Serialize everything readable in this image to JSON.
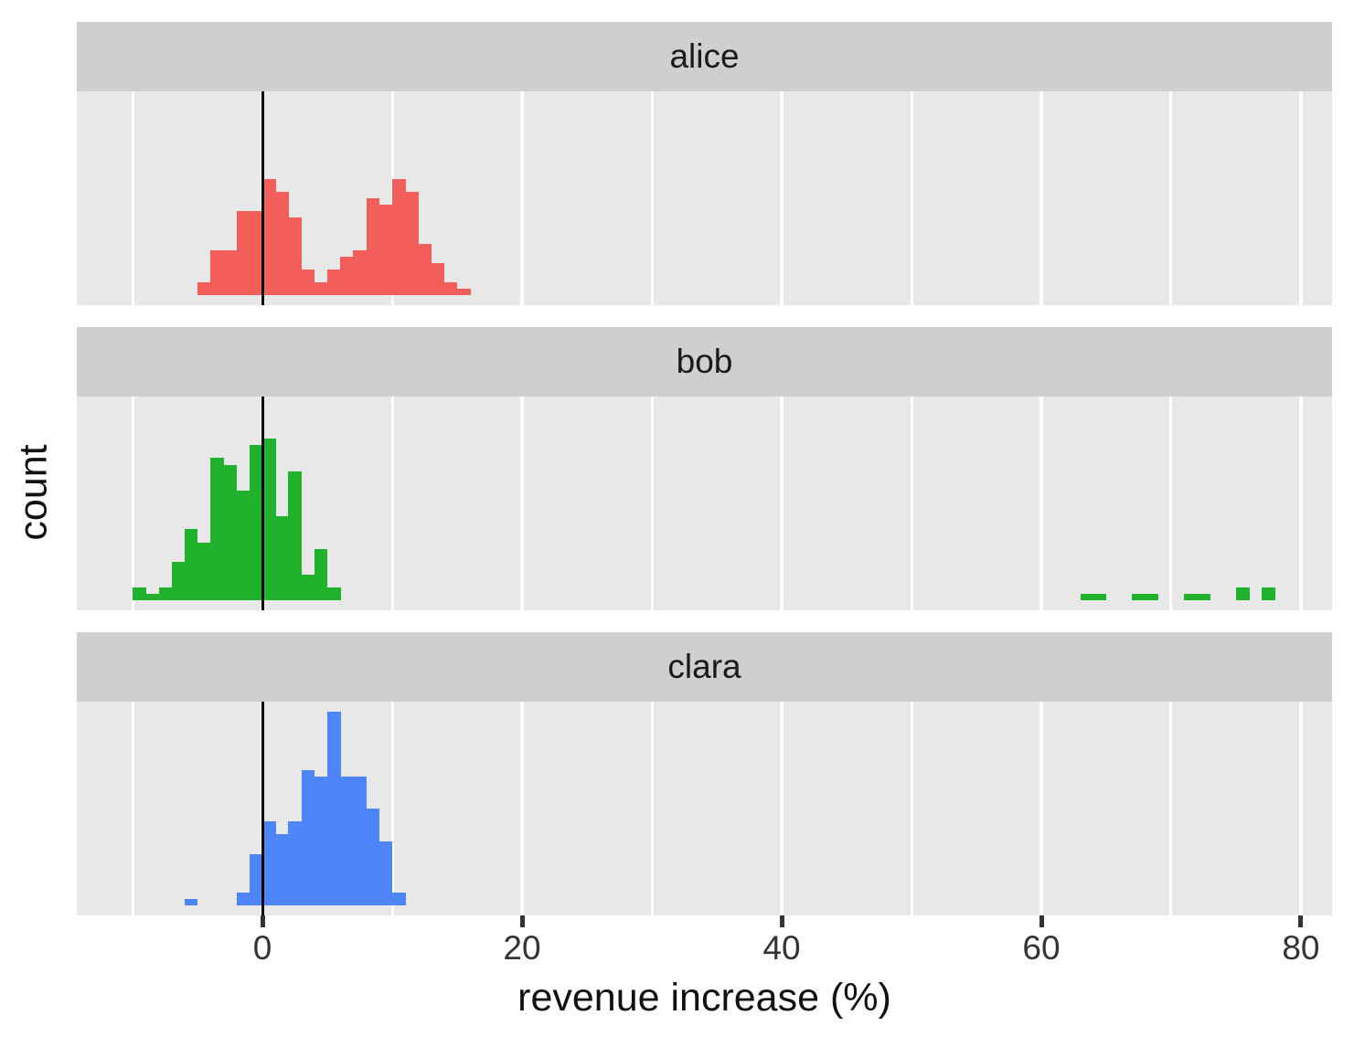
{
  "figure": {
    "x_axis_title": "revenue increase (%)",
    "y_axis_title": "count"
  },
  "axes": {
    "x_tick_labels": [
      "0",
      "20",
      "40",
      "60",
      "80"
    ],
    "x_tick_values": [
      0,
      20,
      40,
      60,
      80
    ],
    "x_minor_values": [
      -10,
      10,
      30,
      50,
      70
    ],
    "x_range": [
      -14.3,
      82.4
    ],
    "y_range": [
      -1.5,
      31.5
    ],
    "grid": "on",
    "y_tick_labels": []
  },
  "colors": {
    "background": "#ffffff",
    "panel_background": "#e8e8e8",
    "strip_background": "#cfcfcf",
    "gridline": "#ffffff",
    "zero_line": "#000000",
    "axis_tick": "#333333",
    "tick_label_text": "#333333",
    "title_text": "#111111",
    "strip_text": "#1a1a1a",
    "alice": "#f25e5a",
    "bob": "#20b22c",
    "clara": "#4e86fa"
  },
  "chart_data": {
    "type": "bar",
    "subtype": "faceted-histogram",
    "title": "",
    "xlabel": "revenue increase (%)",
    "ylabel": "count",
    "xlim": [
      -14.3,
      82.4
    ],
    "ylim": [
      -1.5,
      31.5
    ],
    "binwidth": 1,
    "vline_x": 0,
    "legend": "none",
    "facet_layout": "one-column",
    "facets": [
      {
        "label": "alice",
        "color": "#f25e5a",
        "bins": [
          [
            -5,
            2
          ],
          [
            -4,
            7
          ],
          [
            -3,
            7
          ],
          [
            -2,
            13
          ],
          [
            -1,
            13
          ],
          [
            0,
            18
          ],
          [
            1,
            16
          ],
          [
            2,
            12
          ],
          [
            3,
            4
          ],
          [
            4,
            2
          ],
          [
            5,
            4
          ],
          [
            6,
            6
          ],
          [
            7,
            7
          ],
          [
            8,
            15
          ],
          [
            9,
            14
          ],
          [
            10,
            18
          ],
          [
            11,
            16
          ],
          [
            12,
            8
          ],
          [
            13,
            5
          ],
          [
            14,
            2
          ],
          [
            15,
            1
          ]
        ]
      },
      {
        "label": "bob",
        "color": "#20b22c",
        "bins": [
          [
            -10,
            2
          ],
          [
            -9,
            1
          ],
          [
            -8,
            2
          ],
          [
            -7,
            6
          ],
          [
            -6,
            11
          ],
          [
            -5,
            9
          ],
          [
            -4,
            22
          ],
          [
            -3,
            21
          ],
          [
            -2,
            17
          ],
          [
            -1,
            24
          ],
          [
            0,
            25
          ],
          [
            1,
            13
          ],
          [
            2,
            20
          ],
          [
            3,
            4
          ],
          [
            4,
            8
          ],
          [
            5,
            2
          ],
          [
            63,
            1
          ],
          [
            64,
            1
          ],
          [
            67,
            1
          ],
          [
            68,
            1
          ],
          [
            71,
            1
          ],
          [
            72,
            1
          ],
          [
            75,
            2
          ],
          [
            77,
            2
          ]
        ]
      },
      {
        "label": "clara",
        "color": "#4e86fa",
        "bins": [
          [
            -6,
            1
          ],
          [
            -2,
            2
          ],
          [
            -1,
            8
          ],
          [
            0,
            13
          ],
          [
            1,
            11
          ],
          [
            2,
            13
          ],
          [
            3,
            21
          ],
          [
            4,
            20
          ],
          [
            5,
            30
          ],
          [
            6,
            20
          ],
          [
            7,
            20
          ],
          [
            8,
            15
          ],
          [
            9,
            10
          ],
          [
            10,
            2
          ]
        ]
      }
    ]
  }
}
